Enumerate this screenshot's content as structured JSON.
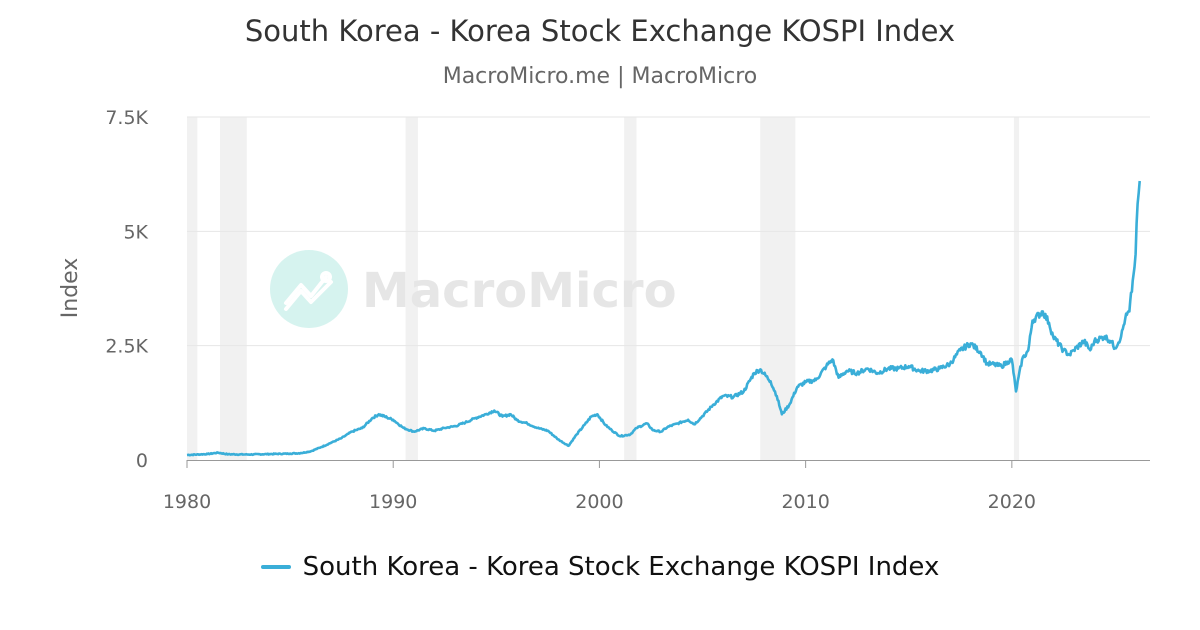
{
  "header": {
    "title": "South Korea - Korea Stock Exchange KOSPI Index",
    "subtitle": "MacroMicro.me | MacroMicro"
  },
  "watermark": {
    "text": "MacroMicro",
    "icon": "chart-trend-icon"
  },
  "colors": {
    "series": "#3aaed8",
    "recession": "#f1f1f1",
    "grid": "#e6e6e6",
    "axis": "#999999",
    "watermark_circle": "#d6f3ef",
    "watermark_text": "#e6e6e6"
  },
  "chart_data": {
    "type": "line",
    "title": "South Korea - Korea Stock Exchange KOSPI Index",
    "subtitle": "MacroMicro.me | MacroMicro",
    "xlabel": "",
    "ylabel": "Index",
    "xlim": [
      1980,
      2026.7
    ],
    "ylim": [
      0,
      7500
    ],
    "x_ticks": [
      1980,
      1990,
      2000,
      2010,
      2020
    ],
    "y_ticks": [
      0,
      2500,
      5000,
      7500
    ],
    "y_tick_labels": [
      "0",
      "2.5K",
      "5K",
      "7.5K"
    ],
    "grid": true,
    "legend_position": "bottom-center",
    "recessions": [
      [
        1980.0,
        1980.5
      ],
      [
        1981.6,
        1982.9
      ],
      [
        1990.6,
        1991.2
      ],
      [
        2001.2,
        2001.8
      ],
      [
        2007.8,
        2009.5
      ],
      [
        2020.1,
        2020.35
      ]
    ],
    "series": [
      {
        "name": "South Korea - Korea Stock Exchange KOSPI Index",
        "x": [
          1980.0,
          1981.0,
          1981.5,
          1982.0,
          1983.0,
          1984.0,
          1985.0,
          1985.5,
          1986.0,
          1986.5,
          1987.0,
          1987.5,
          1988.0,
          1988.5,
          1989.0,
          1989.3,
          1989.7,
          1990.0,
          1990.5,
          1991.0,
          1991.5,
          1992.0,
          1992.5,
          1993.0,
          1993.5,
          1994.0,
          1994.5,
          1994.9,
          1995.3,
          1995.7,
          1996.0,
          1996.5,
          1997.0,
          1997.5,
          1998.0,
          1998.5,
          1998.9,
          1999.3,
          1999.6,
          1999.9,
          2000.3,
          2000.6,
          2001.0,
          2001.5,
          2001.8,
          2002.3,
          2002.6,
          2003.0,
          2003.3,
          2003.8,
          2004.3,
          2004.6,
          2005.0,
          2005.5,
          2006.0,
          2006.5,
          2007.0,
          2007.5,
          2007.8,
          2008.3,
          2008.6,
          2008.85,
          2009.2,
          2009.6,
          2010.0,
          2010.5,
          2011.0,
          2011.3,
          2011.6,
          2012.0,
          2012.5,
          2013.0,
          2013.5,
          2014.0,
          2014.5,
          2015.0,
          2015.5,
          2016.0,
          2016.5,
          2017.0,
          2017.5,
          2018.0,
          2018.5,
          2018.8,
          2019.0,
          2019.5,
          2019.8,
          2020.0,
          2020.2,
          2020.5,
          2020.8,
          2021.0,
          2021.5,
          2021.8,
          2022.0,
          2022.5,
          2022.8,
          2023.0,
          2023.5,
          2023.8,
          2024.0,
          2024.5,
          2024.8,
          2025.0,
          2025.3,
          2025.5,
          2025.7,
          2025.9,
          2026.0,
          2026.1,
          2026.2
        ],
        "values": [
          110,
          130,
          160,
          125,
          120,
          130,
          140,
          150,
          190,
          280,
          380,
          480,
          620,
          700,
          920,
          1000,
          930,
          880,
          700,
          620,
          690,
          640,
          700,
          740,
          820,
          920,
          1000,
          1080,
          950,
          1000,
          870,
          800,
          700,
          640,
          450,
          310,
          560,
          780,
          950,
          1000,
          760,
          650,
          520,
          560,
          700,
          800,
          650,
          620,
          720,
          800,
          880,
          780,
          960,
          1200,
          1400,
          1380,
          1500,
          1900,
          1980,
          1720,
          1400,
          1000,
          1200,
          1600,
          1700,
          1750,
          2050,
          2200,
          1800,
          1950,
          1900,
          2000,
          1900,
          2000,
          2000,
          2050,
          1950,
          1950,
          2000,
          2100,
          2400,
          2550,
          2350,
          2100,
          2100,
          2050,
          2150,
          2200,
          1500,
          2200,
          2400,
          3050,
          3250,
          3000,
          2700,
          2400,
          2300,
          2400,
          2600,
          2400,
          2600,
          2700,
          2600,
          2450,
          2700,
          3100,
          3250,
          4050,
          4500,
          5600,
          6100
        ]
      }
    ]
  }
}
